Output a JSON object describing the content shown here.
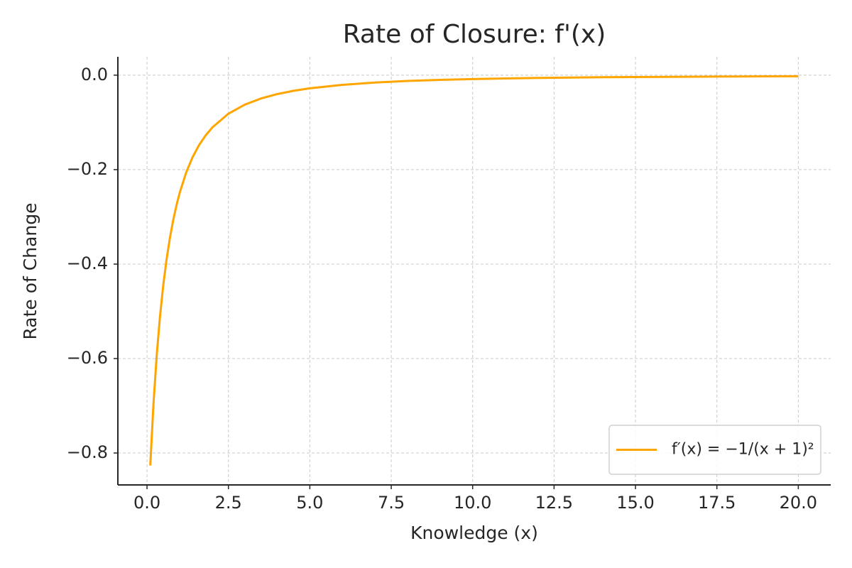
{
  "chart_data": {
    "type": "line",
    "title": "Rate of Closure: f'(x)",
    "x_label": "Knowledge (x)",
    "y_label": "Rate of Change",
    "x": [
      0.1,
      0.2,
      0.3,
      0.4,
      0.5,
      0.6,
      0.7,
      0.8,
      0.9,
      1.0,
      1.2,
      1.4,
      1.6,
      1.8,
      2.0,
      2.5,
      3,
      3.5,
      4,
      4.5,
      5,
      6,
      7,
      8,
      9,
      10,
      11,
      12,
      13,
      14,
      15,
      16,
      17,
      18,
      19,
      20
    ],
    "series": [
      {
        "name": "f′(x) = −1/(x + 1)²",
        "color": "#ffa500",
        "values": [
          -0.8264,
          -0.6944,
          -0.5917,
          -0.5102,
          -0.4444,
          -0.3906,
          -0.346,
          -0.3086,
          -0.277,
          -0.25,
          -0.2066,
          -0.1736,
          -0.1479,
          -0.1276,
          -0.1111,
          -0.0816,
          -0.0625,
          -0.0494,
          -0.04,
          -0.0331,
          -0.0278,
          -0.0204,
          -0.0156,
          -0.0123,
          -0.01,
          -0.0083,
          -0.0069,
          -0.0059,
          -0.0051,
          -0.0044,
          -0.0039,
          -0.0035,
          -0.0031,
          -0.0028,
          -0.0025,
          -0.0023
        ]
      }
    ],
    "xlim": [
      -0.895,
      20.995
    ],
    "ylim": [
      -0.8676,
      0.0389
    ],
    "xticks": [
      {
        "value": 0,
        "label": "0.0"
      },
      2.5,
      {
        "value": 5,
        "label": "5.0"
      },
      7.5,
      {
        "value": 10,
        "label": "10.0"
      },
      12.5,
      {
        "value": 15,
        "label": "15.0"
      },
      17.5,
      {
        "value": 20,
        "label": "20.0"
      }
    ],
    "yticks": [
      {
        "value": 0,
        "label": "0.0"
      },
      {
        "value": -0.2,
        "label": "−0.2"
      },
      {
        "value": -0.4,
        "label": "−0.4"
      },
      {
        "value": -0.6,
        "label": "−0.6"
      },
      {
        "value": -0.8,
        "label": "−0.8"
      }
    ],
    "grid": true,
    "legend": "lower right"
  }
}
